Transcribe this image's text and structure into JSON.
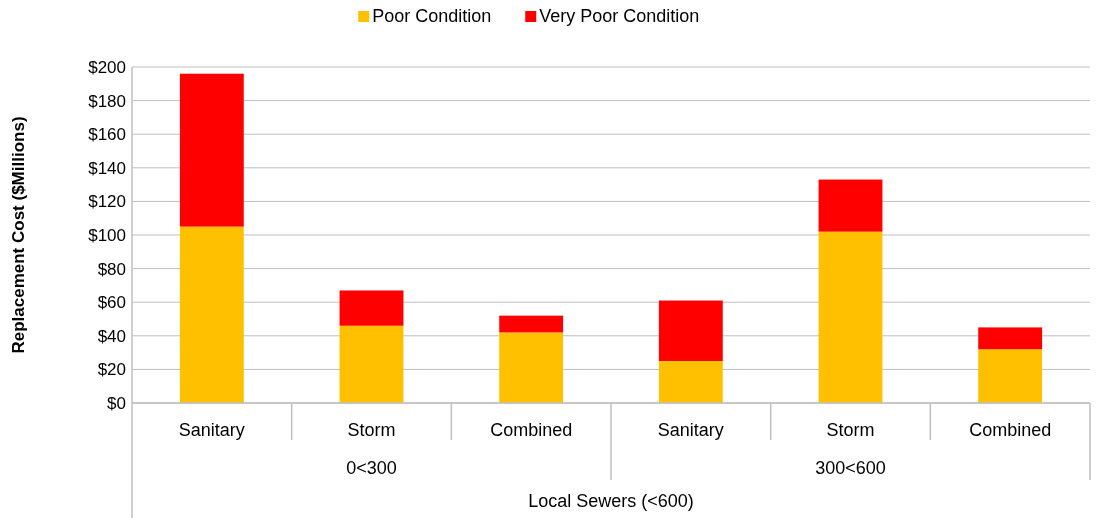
{
  "chart_data": {
    "type": "bar",
    "stacked": true,
    "ylabel": "Replacement Cost ($Millions)",
    "xlabel": "Local Sewers (<600)",
    "categories": [
      "Sanitary",
      "Storm",
      "Combined",
      "Sanitary",
      "Storm",
      "Combined"
    ],
    "annotations": [
      "0<300",
      "300<600"
    ],
    "series": [
      {
        "name": "Poor Condition",
        "color": "#ffc000",
        "values": [
          105,
          46,
          42,
          25,
          102,
          32
        ]
      },
      {
        "name": "Very Poor Condition",
        "color": "#ff0000",
        "values": [
          91,
          21,
          10,
          36,
          31,
          13
        ]
      }
    ],
    "ylim": [
      0,
      200
    ],
    "yticks": [
      {
        "value": 0,
        "label": "$0"
      },
      {
        "value": 20,
        "label": "$20"
      },
      {
        "value": 40,
        "label": "$40"
      },
      {
        "value": 60,
        "label": "$60"
      },
      {
        "value": 80,
        "label": "$80"
      },
      {
        "value": 100,
        "label": "$100"
      },
      {
        "value": 120,
        "label": "$120"
      },
      {
        "value": 140,
        "label": "$140"
      },
      {
        "value": 160,
        "label": "$160"
      },
      {
        "value": 180,
        "label": "$180"
      },
      {
        "value": 200,
        "label": "$200"
      }
    ],
    "grid": "y",
    "legend": "top"
  }
}
